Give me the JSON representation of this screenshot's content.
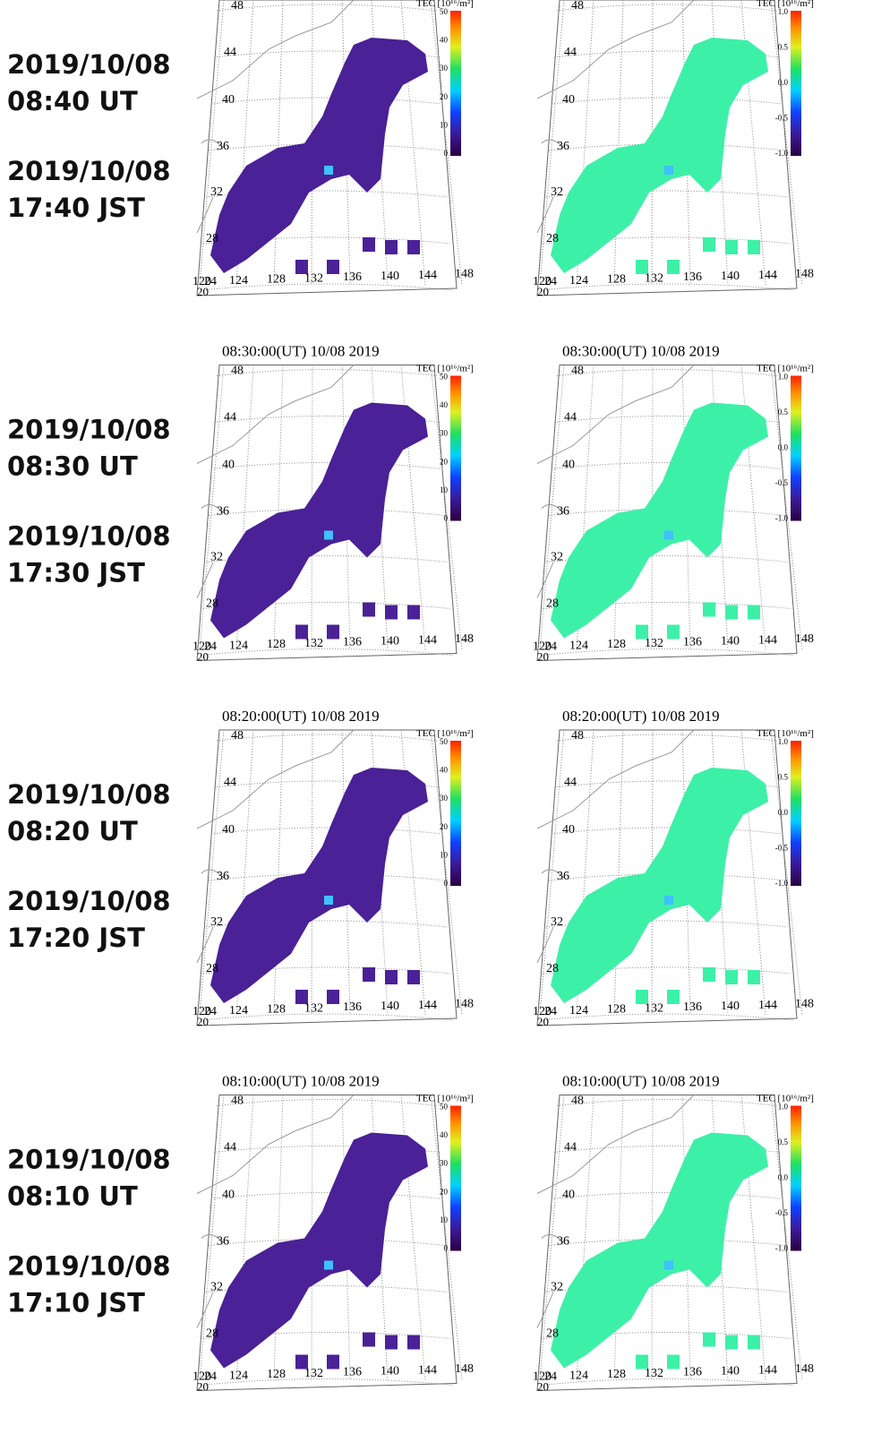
{
  "rows": [
    {
      "ut_date": "2019/10/08",
      "ut_time": "08:40 UT",
      "jst_date": "2019/10/08",
      "jst_time": "17:40 JST",
      "panels": [
        {},
        {}
      ]
    },
    {
      "ut_date": "2019/10/08",
      "ut_time": "08:30 UT",
      "jst_date": "2019/10/08",
      "jst_time": "17:30 JST",
      "panels": [
        {
          "title": "08:30:00(UT)  10/08 2019"
        },
        {
          "title": "08:30:00(UT)  10/08 2019"
        }
      ]
    },
    {
      "ut_date": "2019/10/08",
      "ut_time": "08:20 UT",
      "jst_date": "2019/10/08",
      "jst_time": "17:20 JST",
      "panels": [
        {
          "title": "08:20:00(UT)  10/08 2019"
        },
        {
          "title": "08:20:00(UT)  10/08 2019"
        }
      ]
    },
    {
      "ut_date": "2019/10/08",
      "ut_time": "08:10 UT",
      "jst_date": "2019/10/08",
      "jst_time": "17:10 JST",
      "panels": [
        {
          "title": "08:10:00(UT)  10/08 2019"
        },
        {
          "title": "08:10:00(UT)  10/08 2019"
        }
      ]
    }
  ],
  "map_labels": {
    "lat": [
      "48",
      "44",
      "40",
      "36",
      "32",
      "28",
      "24"
    ],
    "lon": [
      "120",
      "124",
      "128",
      "132",
      "136",
      "140",
      "144",
      "148"
    ],
    "lat_bottom": "20"
  },
  "colorbars": [
    {
      "unit": "TEC [10¹⁶/m²]",
      "ticks": [
        "50",
        "40",
        "30",
        "20",
        "10",
        "0"
      ]
    },
    {
      "unit": "TEC [10¹⁶/m²]",
      "ticks": [
        "1.0",
        "0.5",
        "0.0",
        "-0.5",
        "-1.0"
      ]
    }
  ]
}
